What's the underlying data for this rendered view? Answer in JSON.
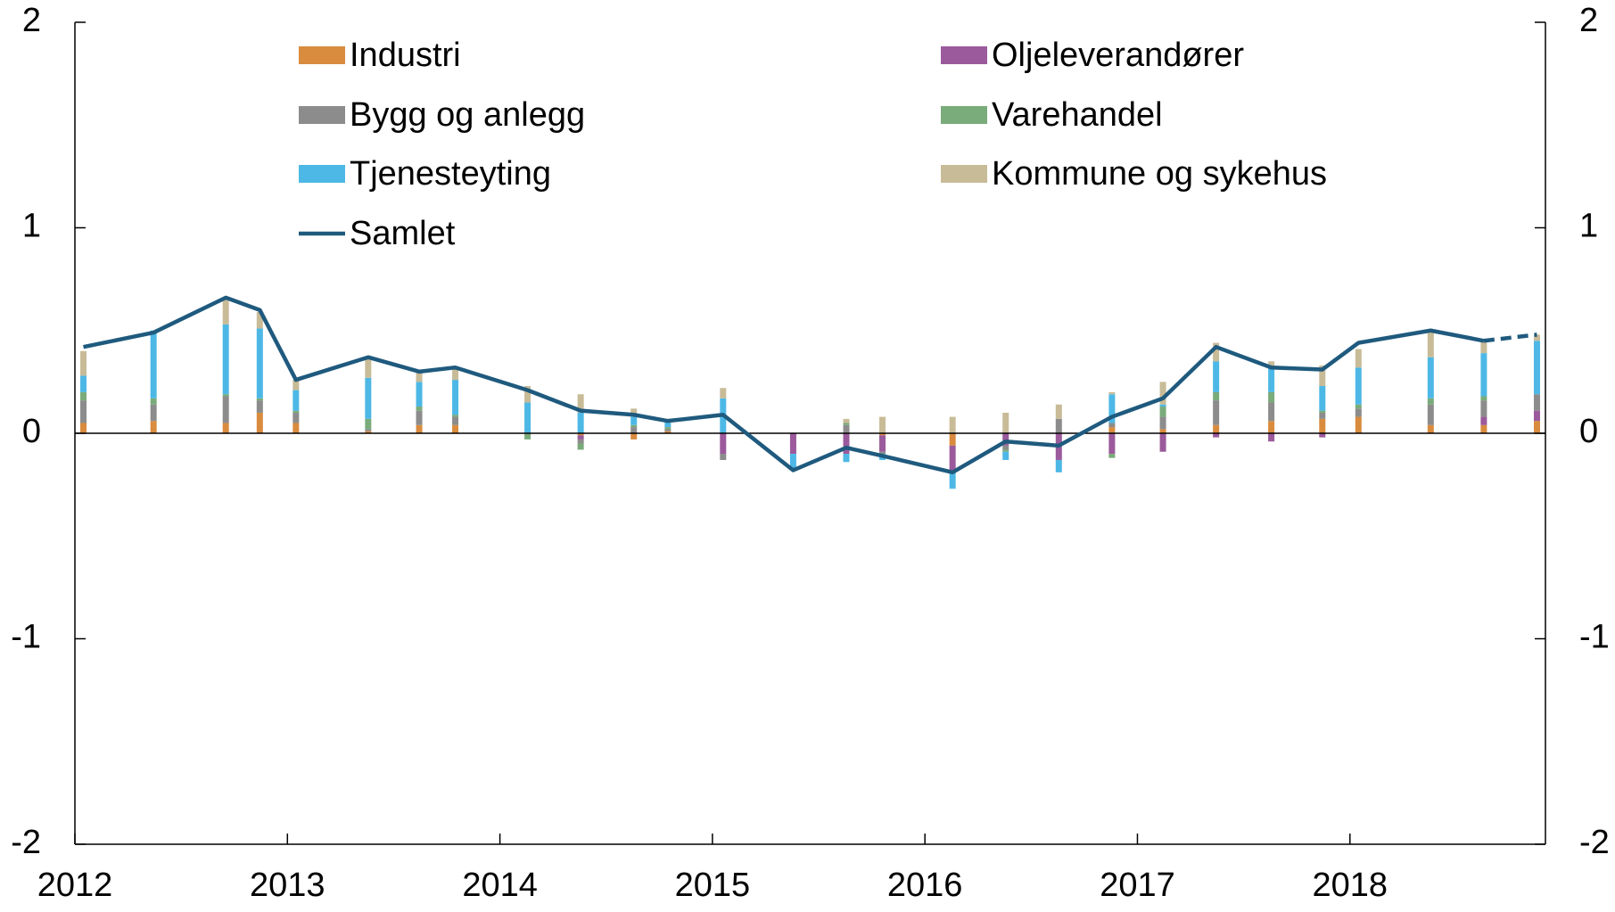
{
  "chart_data": {
    "type": "bar",
    "x": [
      2012.04,
      2012.37,
      2012.71,
      2012.87,
      2013.04,
      2013.38,
      2013.62,
      2013.79,
      2014.13,
      2014.38,
      2014.63,
      2014.79,
      2015.05,
      2015.38,
      2015.63,
      2015.8,
      2016.13,
      2016.38,
      2016.63,
      2016.88,
      2017.12,
      2017.37,
      2017.63,
      2017.87,
      2018.04,
      2018.38,
      2018.63,
      2018.88
    ],
    "series": [
      {
        "name": "Industri",
        "color": "#d98b3e",
        "values": [
          0.05,
          0.06,
          0.05,
          0.1,
          0.05,
          0.01,
          0.04,
          0.04,
          0,
          -0.01,
          -0.03,
          0.01,
          0,
          0,
          0,
          -0.01,
          -0.06,
          0,
          0,
          0.03,
          0.02,
          0.04,
          0.06,
          0.07,
          0.08,
          0.04,
          0.04,
          0.06
        ]
      },
      {
        "name": "Oljeleverandører",
        "color": "#9b5a9b",
        "values": [
          0,
          0,
          0,
          0,
          0,
          0,
          0,
          0,
          0,
          -0.02,
          0,
          0,
          -0.1,
          -0.1,
          -0.1,
          -0.08,
          -0.12,
          -0.06,
          -0.13,
          -0.1,
          -0.09,
          -0.02,
          -0.04,
          -0.02,
          0,
          0,
          0.04,
          0.05
        ]
      },
      {
        "name": "Bygg og anlegg",
        "color": "#8c8c8c",
        "values": [
          0.11,
          0.08,
          0.13,
          0.06,
          0.05,
          0.01,
          0.07,
          0.04,
          0,
          -0.02,
          0.03,
          0.01,
          -0.03,
          0,
          0.04,
          -0.01,
          0,
          -0.02,
          0.07,
          0.02,
          0.06,
          0.12,
          0.09,
          0.03,
          0.04,
          0.1,
          0.08,
          0.08
        ]
      },
      {
        "name": "Varehandel",
        "color": "#7aab7a",
        "values": [
          0.04,
          0.03,
          0.01,
          0.01,
          0.01,
          0.05,
          0.02,
          0.01,
          -0.03,
          -0.03,
          0.01,
          0.01,
          0,
          0,
          0.01,
          0,
          0,
          -0.01,
          0,
          -0.02,
          0.05,
          0.04,
          0.05,
          0.01,
          0.02,
          0.03,
          0.02,
          0
        ]
      },
      {
        "name": "Tjenesteyting",
        "color": "#4db8e6",
        "values": [
          0.08,
          0.33,
          0.34,
          0.34,
          0.1,
          0.2,
          0.12,
          0.17,
          0.15,
          0.1,
          0.04,
          0.03,
          0.17,
          -0.08,
          -0.04,
          -0.03,
          -0.09,
          -0.04,
          -0.06,
          0.14,
          0.01,
          0.15,
          0.12,
          0.12,
          0.18,
          0.2,
          0.21,
          0.26
        ]
      },
      {
        "name": "Kommune og sykehus",
        "color": "#c8bb97",
        "values": [
          0.12,
          0,
          0.12,
          0.08,
          0.05,
          0.09,
          0.05,
          0.06,
          0.08,
          0.09,
          0.04,
          0,
          0.05,
          0,
          0.02,
          0.08,
          0.08,
          0.1,
          0.07,
          0.01,
          0.11,
          0.09,
          0.03,
          0.1,
          0.09,
          0.12,
          0.06,
          0.03
        ]
      },
      {
        "name": "Samlet",
        "type": "line",
        "color": "#1f5a7e",
        "dashed_from_index": 26,
        "values": [
          0.42,
          0.49,
          0.66,
          0.6,
          0.26,
          0.37,
          0.3,
          0.32,
          0.21,
          0.11,
          0.09,
          0.06,
          0.09,
          -0.18,
          -0.07,
          -0.11,
          -0.19,
          -0.04,
          -0.06,
          0.08,
          0.17,
          0.42,
          0.32,
          0.31,
          0.44,
          0.5,
          0.45,
          0.48
        ]
      }
    ],
    "xlim": [
      2012,
      2018.92
    ],
    "xticks": [
      2012,
      2013,
      2014,
      2015,
      2016,
      2017,
      2018
    ],
    "ylim": [
      -2,
      2
    ],
    "yticks": [
      -2,
      -1,
      0,
      1,
      2
    ],
    "y2lim": [
      -2,
      2
    ],
    "y2ticks": [
      -2,
      -1,
      0,
      1,
      2
    ]
  }
}
